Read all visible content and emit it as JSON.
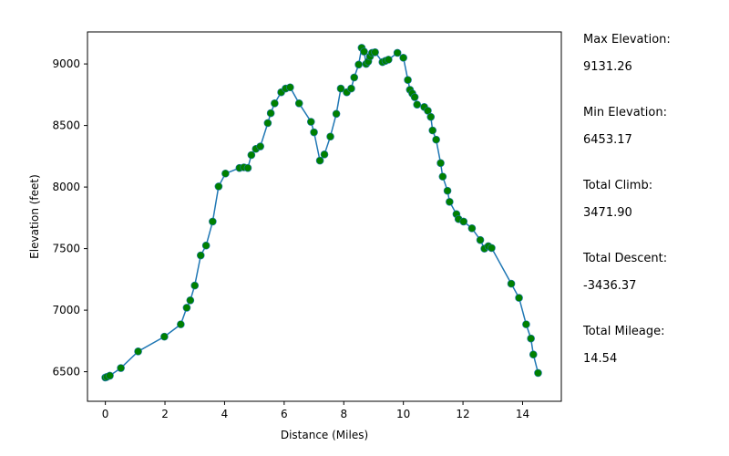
{
  "chart_data": {
    "type": "line",
    "xlabel": "Distance (Miles)",
    "ylabel": "Elevation (feet)",
    "xlim": [
      -0.6,
      15.3
    ],
    "ylim": [
      6260,
      9260
    ],
    "xticks": [
      0,
      2,
      4,
      6,
      8,
      10,
      12,
      14
    ],
    "yticks": [
      6500,
      7000,
      7500,
      8000,
      8500,
      9000
    ],
    "grid": false,
    "line_color": "#1f77b4",
    "marker_color": "#008000",
    "marker_edge_color": "#1f77b4",
    "series": [
      {
        "x": [
          0.0,
          0.05,
          0.15,
          0.52,
          1.1,
          1.98,
          2.53,
          2.73,
          2.85,
          3.0,
          3.2,
          3.38,
          3.6,
          3.8,
          4.03,
          4.5,
          4.65,
          4.78,
          4.9,
          5.05,
          5.2,
          5.45,
          5.55,
          5.68,
          5.9,
          6.05,
          6.2,
          6.5,
          6.9,
          7.0,
          7.2,
          7.35,
          7.55,
          7.75,
          7.9,
          8.1,
          8.25,
          8.35,
          8.5,
          8.6,
          8.68,
          8.75,
          8.82,
          8.88,
          8.95,
          9.05,
          9.3,
          9.4,
          9.5,
          9.8,
          10.0,
          10.15,
          10.22,
          10.3,
          10.38,
          10.46,
          10.7,
          10.82,
          10.92,
          10.98,
          11.1,
          11.25,
          11.32,
          11.48,
          11.55,
          11.78,
          11.85,
          12.02,
          12.3,
          12.58,
          12.72,
          12.85,
          12.96,
          13.62,
          13.88,
          14.12,
          14.28,
          14.36,
          14.52
        ],
        "y": [
          6453,
          6458,
          6468,
          6530,
          6665,
          6785,
          6885,
          7020,
          7080,
          7200,
          7445,
          7525,
          7720,
          8005,
          8110,
          8155,
          8160,
          8155,
          8260,
          8310,
          8330,
          8520,
          8600,
          8680,
          8770,
          8800,
          8810,
          8680,
          8530,
          8445,
          8215,
          8265,
          8410,
          8595,
          8800,
          8770,
          8800,
          8890,
          8995,
          9131,
          9100,
          9000,
          9020,
          9060,
          9090,
          9095,
          9015,
          9025,
          9035,
          9090,
          9050,
          8870,
          8790,
          8760,
          8730,
          8670,
          8650,
          8620,
          8570,
          8460,
          8385,
          8195,
          8085,
          7970,
          7880,
          7780,
          7740,
          7720,
          7665,
          7570,
          7500,
          7520,
          7505,
          7215,
          7100,
          6885,
          6770,
          6640,
          6490
        ]
      }
    ]
  },
  "stats": [
    {
      "label": "Max Elevation:",
      "value": "9131.26"
    },
    {
      "label": "Min Elevation:",
      "value": "6453.17"
    },
    {
      "label": "Total Climb:",
      "value": "3471.90"
    },
    {
      "label": "Total Descent:",
      "value": "-3436.37"
    },
    {
      "label": "Total Mileage:",
      "value": "14.54"
    }
  ]
}
